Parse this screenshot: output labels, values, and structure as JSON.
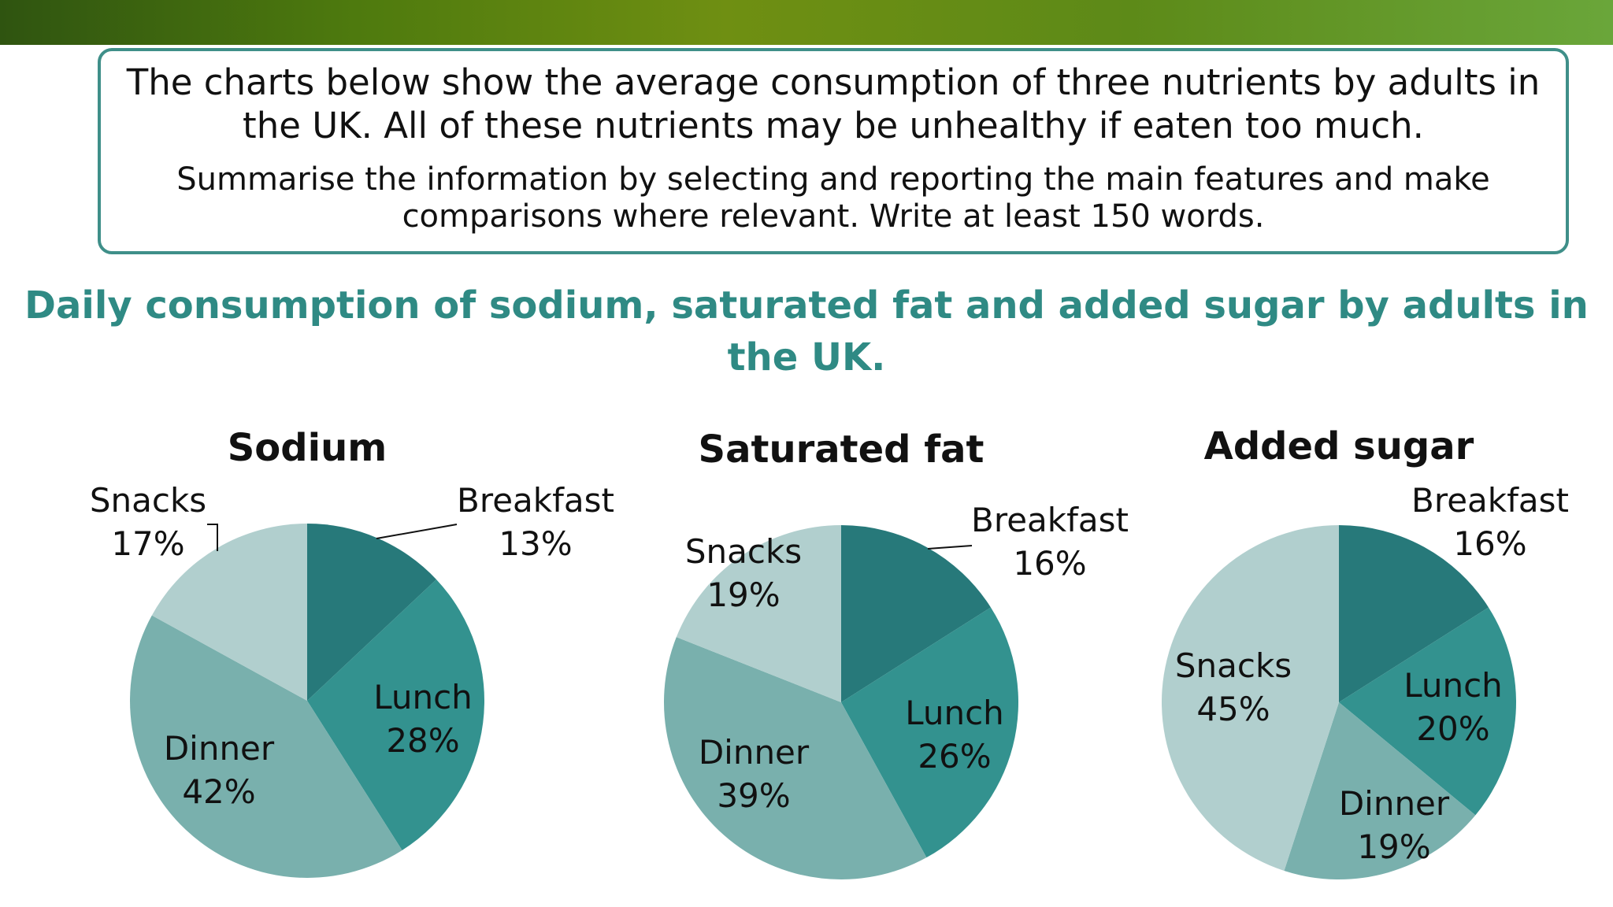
{
  "task": {
    "line1": "The charts below show the average consumption of three nutrients by adults in the UK. All of these nutrients may be unhealthy if eaten too much.",
    "line2": "Summarise the information by selecting and reporting the main features and make comparisons where relevant. Write at least 150 words."
  },
  "figure_title": "Daily consumption of sodium, saturated fat and added sugar by adults in the UK.",
  "colors": {
    "banner_start": "#2f5410",
    "banner_end": "#6aa63a",
    "box_border": "#3f8f89",
    "title": "#2f8a84",
    "Breakfast": "#27797a",
    "Lunch": "#33928f",
    "Dinner": "#79b0ad",
    "Snacks": "#b1cfce"
  },
  "chart_data": [
    {
      "type": "pie",
      "title": "Sodium",
      "categories": [
        "Breakfast",
        "Lunch",
        "Dinner",
        "Snacks"
      ],
      "values": [
        13,
        28,
        42,
        17
      ],
      "unit": "%"
    },
    {
      "type": "pie",
      "title": "Saturated fat",
      "categories": [
        "Breakfast",
        "Lunch",
        "Dinner",
        "Snacks"
      ],
      "values": [
        16,
        26,
        39,
        19
      ],
      "unit": "%"
    },
    {
      "type": "pie",
      "title": "Added sugar",
      "categories": [
        "Breakfast",
        "Lunch",
        "Dinner",
        "Snacks"
      ],
      "values": [
        16,
        20,
        19,
        45
      ],
      "unit": "%"
    }
  ]
}
